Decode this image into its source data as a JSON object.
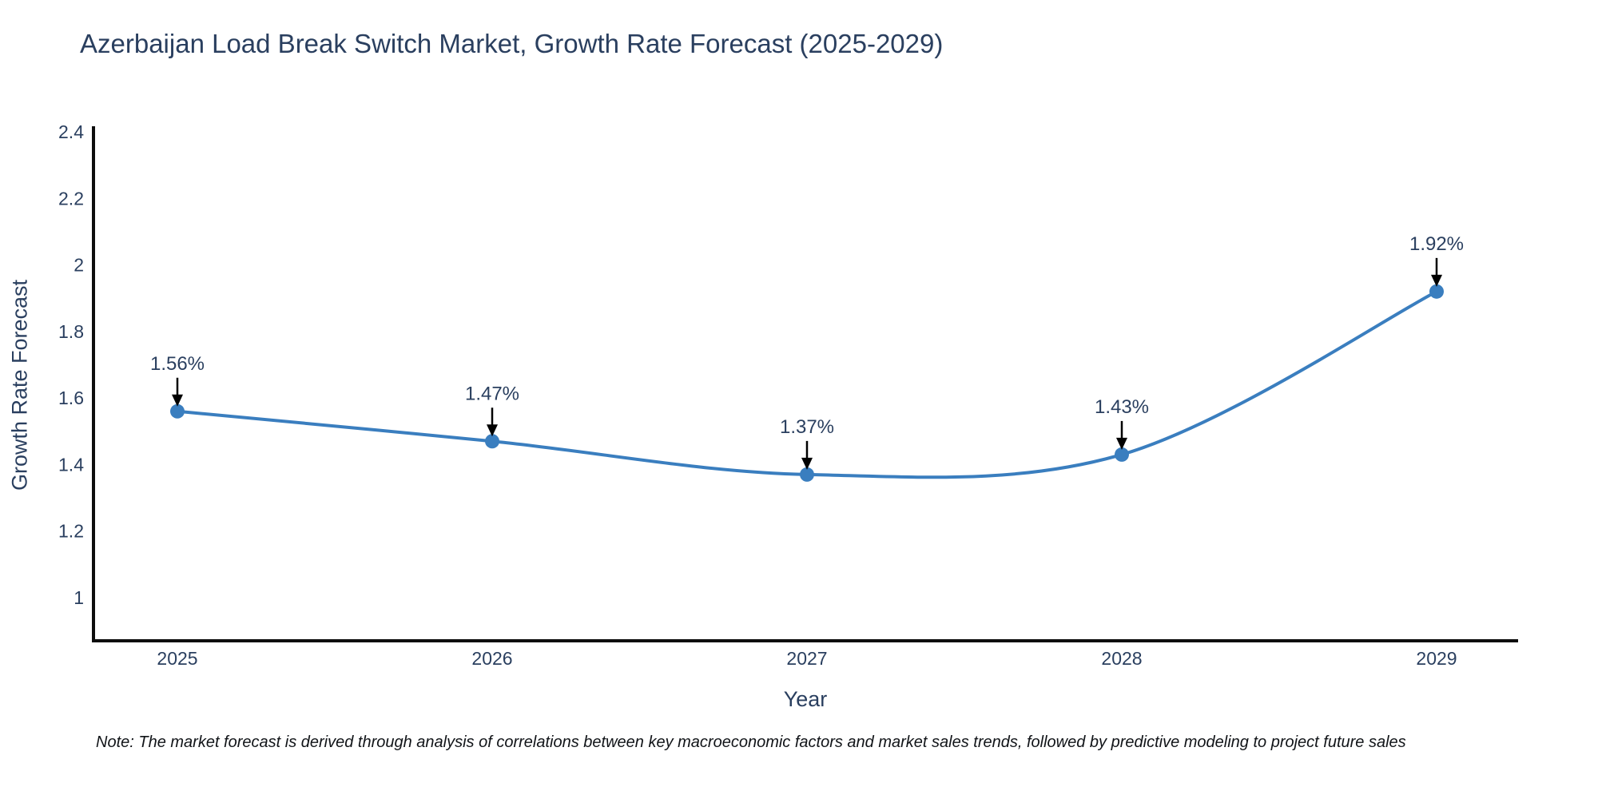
{
  "title": "Azerbaijan Load Break Switch Market, Growth Rate Forecast (2025-2029)",
  "note": "Note: The market forecast is derived through analysis of correlations between key macroeconomic factors and market sales trends, followed by predictive modeling to project future sales",
  "chart_data": {
    "type": "line",
    "title": "Azerbaijan Load Break Switch Market, Growth Rate Forecast (2025-2029)",
    "xlabel": "Year",
    "ylabel": "Growth Rate Forecast",
    "x": [
      2025,
      2026,
      2027,
      2028,
      2029
    ],
    "x_tick_labels": [
      "2025",
      "2026",
      "2027",
      "2028",
      "2029"
    ],
    "values": [
      1.56,
      1.47,
      1.37,
      1.43,
      1.92
    ],
    "point_labels": [
      "1.56%",
      "1.47%",
      "1.37%",
      "1.43%",
      "1.92%"
    ],
    "ytick_values": [
      1,
      1.2,
      1.4,
      1.6,
      1.8,
      2,
      2.2,
      2.4
    ],
    "ytick_labels": [
      "1",
      "1.2",
      "1.4",
      "1.6",
      "1.8",
      "2",
      "2.2",
      "2.4"
    ],
    "ylim": [
      0.87,
      2.41
    ],
    "xlim": [
      2024.73,
      2029.26
    ],
    "grid": false,
    "legend": false,
    "line_shape": "spline",
    "line_color": "#3a7ebf",
    "marker_color": "#3a7ebf",
    "annotation_arrow_color": "#000000",
    "axis_line_color": "#0d0d0d",
    "text_color": "#2a3f5f"
  }
}
